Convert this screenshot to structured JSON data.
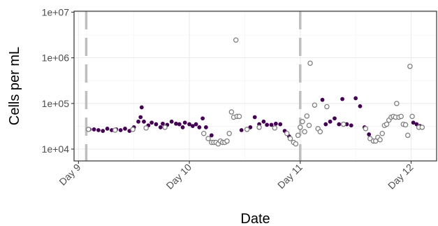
{
  "chart_data": {
    "type": "scatter",
    "xlabel": "Date",
    "ylabel": "Cells per mL",
    "x_unit": "day",
    "x_ticks": [
      {
        "value": 9,
        "label": "Day 9"
      },
      {
        "value": 10,
        "label": "Day 10"
      },
      {
        "value": 11,
        "label": "Day 11"
      },
      {
        "value": 12,
        "label": "Day 12"
      }
    ],
    "y_scale": "log",
    "y_ticks": [
      {
        "value": 10000,
        "label": "1e+04"
      },
      {
        "value": 100000,
        "label": "1e+05"
      },
      {
        "value": 1000000,
        "label": "1e+06"
      },
      {
        "value": 10000000,
        "label": "1e+07"
      }
    ],
    "xlim": [
      8.96,
      12.23
    ],
    "ylim": [
      5500,
      10500000
    ],
    "grid": true,
    "vertical_markers": [
      {
        "x": 9.07,
        "style": "dashed",
        "color": "#bfbfbf"
      },
      {
        "x": 11.0,
        "style": "dashed",
        "color": "#bfbfbf"
      }
    ],
    "colors": {
      "filled": "#440154",
      "open": "#808080"
    },
    "series": [
      {
        "style": "filled",
        "points": [
          [
            9.1,
            27000
          ],
          [
            9.14,
            27000
          ],
          [
            9.18,
            26000
          ],
          [
            9.22,
            25000
          ],
          [
            9.26,
            28000
          ],
          [
            9.3,
            26000
          ],
          [
            9.34,
            27000
          ],
          [
            9.38,
            26000
          ],
          [
            9.42,
            28000
          ],
          [
            9.46,
            25000
          ],
          [
            9.5,
            30000
          ],
          [
            9.54,
            40000
          ],
          [
            9.56,
            50000
          ],
          [
            9.57,
            82000
          ],
          [
            9.59,
            40000
          ],
          [
            9.63,
            33000
          ],
          [
            9.66,
            38000
          ],
          [
            9.7,
            35000
          ],
          [
            9.74,
            30000
          ],
          [
            9.76,
            36000
          ],
          [
            9.8,
            34000
          ],
          [
            9.84,
            40000
          ],
          [
            9.88,
            36000
          ],
          [
            9.91,
            35000
          ],
          [
            9.94,
            30000
          ],
          [
            9.96,
            38000
          ],
          [
            10.0,
            35000
          ],
          [
            10.03,
            32000
          ],
          [
            10.06,
            35000
          ],
          [
            10.09,
            30000
          ],
          [
            10.12,
            47000
          ],
          [
            10.15,
            30000
          ],
          [
            10.2,
            20000
          ],
          [
            10.47,
            26000
          ],
          [
            10.55,
            30000
          ],
          [
            10.59,
            50000
          ],
          [
            10.63,
            35000
          ],
          [
            10.67,
            40000
          ],
          [
            10.7,
            34000
          ],
          [
            10.74,
            34000
          ],
          [
            10.78,
            36000
          ],
          [
            10.82,
            35000
          ],
          [
            10.86,
            25000
          ],
          [
            10.9,
            19000
          ],
          [
            11.2,
            120000
          ],
          [
            11.23,
            35000
          ],
          [
            11.27,
            40000
          ],
          [
            11.31,
            47000
          ],
          [
            11.35,
            35000
          ],
          [
            11.38,
            125000
          ],
          [
            11.42,
            35000
          ],
          [
            11.46,
            33000
          ],
          [
            11.5,
            130000
          ],
          [
            11.54,
            87000
          ],
          [
            11.58,
            30000
          ],
          [
            11.62,
            21000
          ],
          [
            12.02,
            38000
          ],
          [
            12.05,
            35000
          ],
          [
            12.08,
            32000
          ]
        ]
      },
      {
        "style": "open",
        "points": [
          [
            9.09,
            27000
          ],
          [
            9.33,
            26000
          ],
          [
            9.49,
            27000
          ],
          [
            9.61,
            29000
          ],
          [
            9.78,
            30000
          ],
          [
            10.13,
            22000
          ],
          [
            10.17,
            17000
          ],
          [
            10.2,
            14000
          ],
          [
            10.22,
            14000
          ],
          [
            10.24,
            14000
          ],
          [
            10.26,
            13000
          ],
          [
            10.28,
            15000
          ],
          [
            10.3,
            14000
          ],
          [
            10.32,
            14000
          ],
          [
            10.34,
            15000
          ],
          [
            10.36,
            22000
          ],
          [
            10.38,
            65000
          ],
          [
            10.4,
            50000
          ],
          [
            10.43,
            52000
          ],
          [
            10.45,
            52000
          ],
          [
            10.42,
            2450000
          ],
          [
            10.52,
            27000
          ],
          [
            10.63,
            30000
          ],
          [
            10.77,
            29000
          ],
          [
            10.88,
            22000
          ],
          [
            10.91,
            17000
          ],
          [
            10.94,
            14000
          ],
          [
            10.96,
            13000
          ],
          [
            10.98,
            20000
          ],
          [
            11.0,
            30000
          ],
          [
            11.02,
            40000
          ],
          [
            11.04,
            24000
          ],
          [
            11.06,
            53000
          ],
          [
            11.08,
            33000
          ],
          [
            11.09,
            760000
          ],
          [
            11.13,
            92000
          ],
          [
            11.16,
            28000
          ],
          [
            11.18,
            24000
          ],
          [
            11.24,
            85000
          ],
          [
            11.39,
            35000
          ],
          [
            11.59,
            28000
          ],
          [
            11.63,
            17000
          ],
          [
            11.66,
            15000
          ],
          [
            11.68,
            15000
          ],
          [
            11.7,
            18000
          ],
          [
            11.72,
            16000
          ],
          [
            11.74,
            22000
          ],
          [
            11.76,
            33000
          ],
          [
            11.78,
            35000
          ],
          [
            11.8,
            43000
          ],
          [
            11.82,
            50000
          ],
          [
            11.84,
            52000
          ],
          [
            11.86,
            50000
          ],
          [
            11.87,
            100000
          ],
          [
            11.89,
            50000
          ],
          [
            11.91,
            52000
          ],
          [
            11.93,
            35000
          ],
          [
            11.95,
            34000
          ],
          [
            11.97,
            20000
          ],
          [
            11.99,
            650000
          ],
          [
            12.01,
            52000
          ],
          [
            12.07,
            30000
          ],
          [
            12.1,
            30000
          ]
        ]
      }
    ]
  }
}
